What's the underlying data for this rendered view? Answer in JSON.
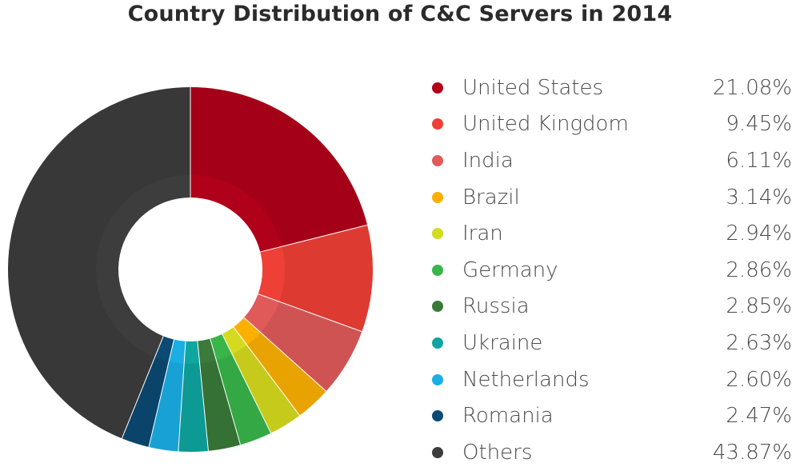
{
  "chart_data": {
    "type": "pie",
    "title": "Country Distribution of C&C Servers in 2014",
    "categories": [
      "United States",
      "United Kingdom",
      "India",
      "Brazil",
      "Iran",
      "Germany",
      "Russia",
      "Ukraine",
      "Netherlands",
      "Romania",
      "Others"
    ],
    "values": [
      21.08,
      9.45,
      6.11,
      3.14,
      2.94,
      2.86,
      2.85,
      2.63,
      2.6,
      2.47,
      43.87
    ],
    "value_labels": [
      "21.08%",
      "9.45%",
      "6.11%",
      "3.14%",
      "2.94%",
      "2.86%",
      "2.85%",
      "2.63%",
      "2.60%",
      "2.47%",
      "43.87%"
    ],
    "colors": [
      "#b10019",
      "#ee4036",
      "#e05a5a",
      "#fbb000",
      "#d4da1e",
      "#39b54a",
      "#3a7a3a",
      "#0fa5a0",
      "#1aaee5",
      "#0b4a74",
      "#3d3d3d"
    ],
    "style": "donut",
    "start_angle_deg": 0,
    "direction": "clockwise",
    "legend_position": "right"
  }
}
